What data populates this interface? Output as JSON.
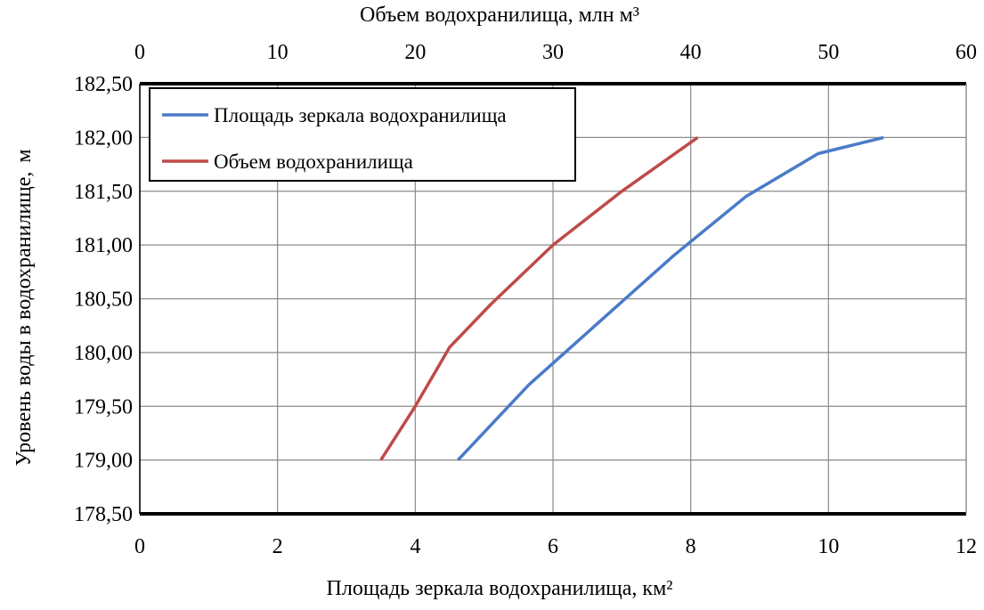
{
  "chart_data": {
    "type": "line",
    "title": "",
    "x_bottom": {
      "label": "Площадь зеркала водохранилища,",
      "unit": "км²",
      "range": [
        0,
        12
      ],
      "ticks": [
        "0",
        "2",
        "4",
        "6",
        "8",
        "10",
        "12"
      ]
    },
    "x_top": {
      "label": "Объем водохранилища,",
      "unit": "млн м³",
      "range": [
        0,
        60
      ],
      "ticks": [
        "0",
        "10",
        "20",
        "30",
        "40",
        "50",
        "60"
      ]
    },
    "y": {
      "label": "Уровень воды в водохранилище,",
      "unit": "м",
      "range": [
        178.5,
        182.5
      ],
      "ticks": [
        "178,50",
        "179,00",
        "179,50",
        "180,00",
        "180,50",
        "181,00",
        "181,50",
        "182,00",
        "182,50"
      ]
    },
    "grid": true,
    "legend_position": "top-left",
    "series": [
      {
        "name": "Площадь зеркала водохранилища",
        "axis": "bottom",
        "color": "#4a7bc8",
        "points": [
          [
            4.62,
            179.0
          ],
          [
            5.65,
            179.7
          ],
          [
            6.7,
            180.3
          ],
          [
            7.75,
            180.9
          ],
          [
            8.8,
            181.45
          ],
          [
            9.85,
            181.85
          ],
          [
            10.8,
            182.0
          ]
        ]
      },
      {
        "name": "Объем водохранилища",
        "axis": "top",
        "color": "#be4b48",
        "points": [
          [
            17.5,
            179.0
          ],
          [
            20.0,
            179.5
          ],
          [
            22.5,
            180.05
          ],
          [
            25.5,
            180.45
          ],
          [
            30.0,
            181.0
          ],
          [
            35.0,
            181.5
          ],
          [
            40.5,
            182.0
          ]
        ]
      }
    ]
  }
}
